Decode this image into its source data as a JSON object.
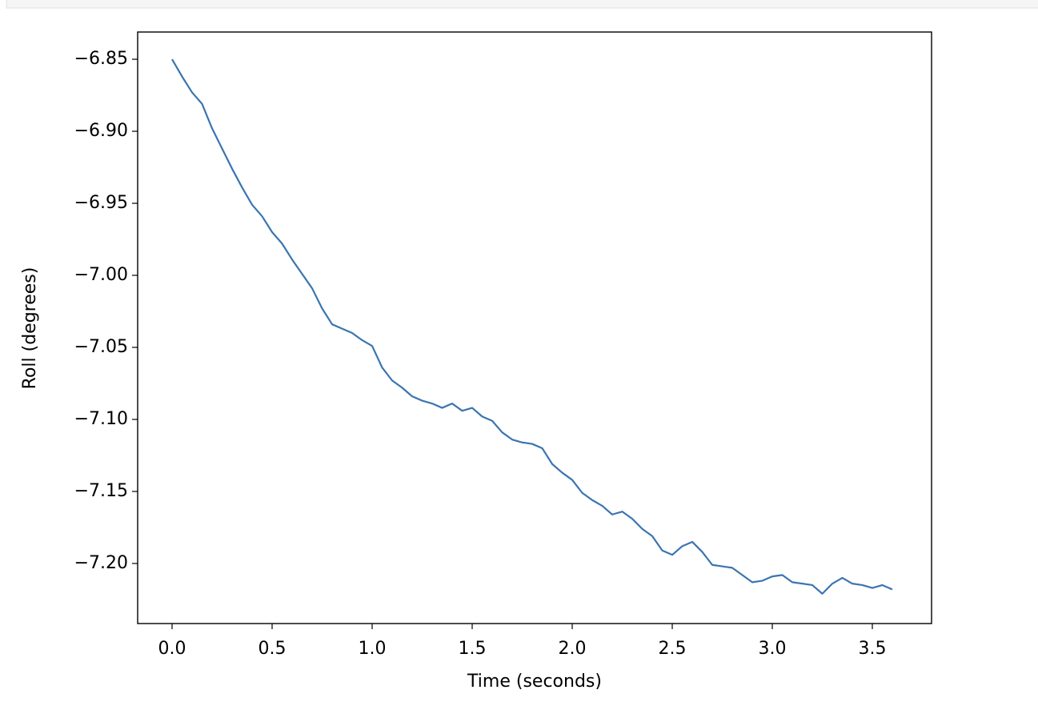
{
  "chart_data": {
    "type": "line",
    "xlabel": "Time (seconds)",
    "ylabel": "Roll (degrees)",
    "x": [
      0,
      0.05,
      0.1,
      0.15,
      0.2,
      0.25,
      0.3,
      0.35,
      0.4,
      0.45,
      0.5,
      0.55,
      0.6,
      0.65,
      0.7,
      0.75,
      0.8,
      0.85,
      0.9,
      0.95,
      1.0,
      1.05,
      1.1,
      1.15,
      1.2,
      1.25,
      1.3,
      1.35,
      1.4,
      1.45,
      1.5,
      1.55,
      1.6,
      1.65,
      1.7,
      1.75,
      1.8,
      1.85,
      1.9,
      1.95,
      2.0,
      2.05,
      2.1,
      2.15,
      2.2,
      2.25,
      2.3,
      2.35,
      2.4,
      2.45,
      2.5,
      2.55,
      2.6,
      2.65,
      2.7,
      2.75,
      2.8,
      2.85,
      2.9,
      2.95,
      3.0,
      3.05,
      3.1,
      3.15,
      3.2,
      3.25,
      3.3,
      3.35,
      3.4,
      3.45,
      3.5,
      3.55,
      3.6
    ],
    "series": [
      {
        "color": "#3a75b0",
        "values": [
          -6.85,
          -6.862,
          -6.873,
          -6.881,
          -6.898,
          -6.912,
          -6.926,
          -6.939,
          -6.951,
          -6.959,
          -6.97,
          -6.978,
          -6.989,
          -6.999,
          -7.009,
          -7.023,
          -7.034,
          -7.037,
          -7.04,
          -7.045,
          -7.049,
          -7.064,
          -7.073,
          -7.078,
          -7.084,
          -7.087,
          -7.089,
          -7.092,
          -7.089,
          -7.094,
          -7.092,
          -7.098,
          -7.101,
          -7.109,
          -7.114,
          -7.116,
          -7.117,
          -7.12,
          -7.131,
          -7.137,
          -7.142,
          -7.151,
          -7.156,
          -7.16,
          -7.166,
          -7.164,
          -7.169,
          -7.176,
          -7.181,
          -7.191,
          -7.194,
          -7.188,
          -7.185,
          -7.192,
          -7.201,
          -7.202,
          -7.203,
          -7.208,
          -7.213,
          -7.212,
          -7.209,
          -7.208,
          -7.213,
          -7.214,
          -7.215,
          -7.221,
          -7.214,
          -7.21,
          -7.214,
          -7.215,
          -7.217,
          -7.215,
          -7.218
        ]
      }
    ],
    "xlim": [
      -0.172,
      3.796
    ],
    "ylim": [
      -7.2417,
      -6.8311
    ],
    "xticks": [
      {
        "value": 0,
        "label": "0.0"
      },
      0.5,
      {
        "value": 1,
        "label": "1.0"
      },
      1.5,
      {
        "value": 2,
        "label": "2.0"
      },
      2.5,
      {
        "value": 3,
        "label": "3.0"
      },
      3.5
    ],
    "yticks": [
      {
        "value": -6.85,
        "label": "−6.85"
      },
      {
        "value": -6.9,
        "label": "−6.90"
      },
      {
        "value": -6.95,
        "label": "−6.95"
      },
      {
        "value": -7.0,
        "label": "−7.00"
      },
      {
        "value": -7.05,
        "label": "−7.05"
      },
      {
        "value": -7.1,
        "label": "−7.10"
      },
      {
        "value": -7.15,
        "label": "−7.15"
      },
      {
        "value": -7.2,
        "label": "−7.20"
      }
    ],
    "grid": false
  }
}
